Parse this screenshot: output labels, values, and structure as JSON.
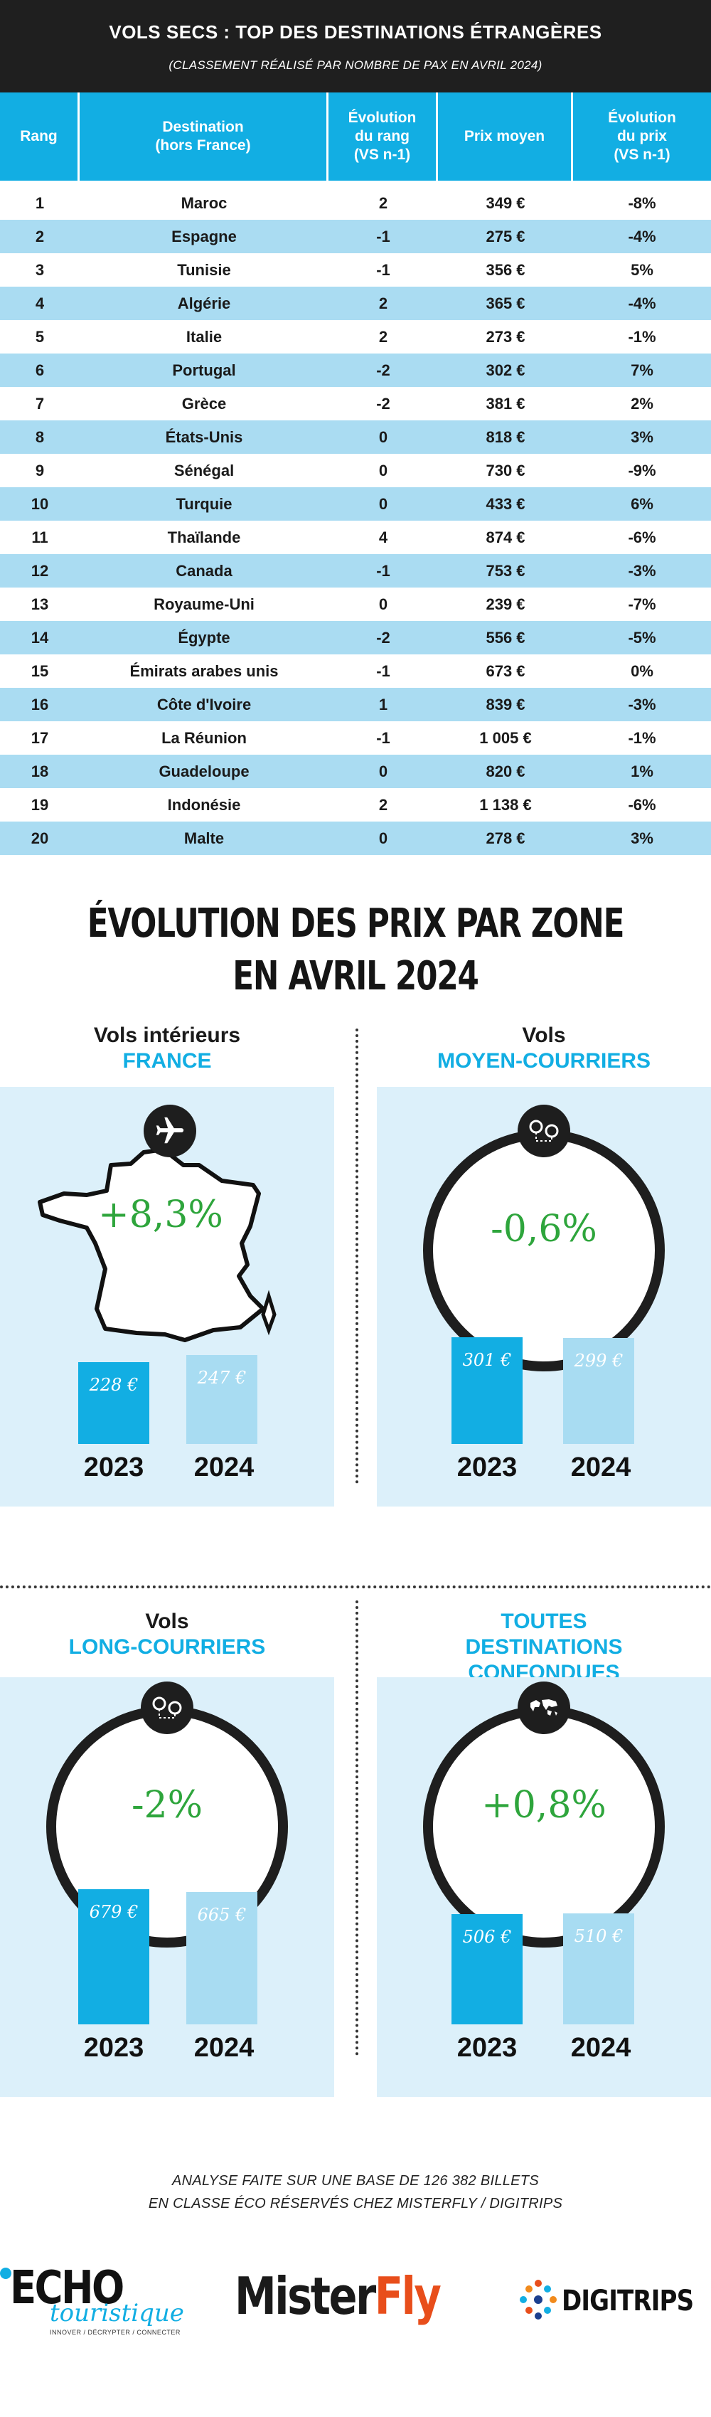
{
  "header": {
    "title": "VOLS SECS : TOP DES DESTINATIONS ÉTRANGÈRES",
    "subtitle": "(CLASSEMENT RÉALISÉ PAR NOMBRE DE PAX EN AVRIL 2024)"
  },
  "table": {
    "headers": [
      "Rang",
      "Destination\n(hors France)",
      "Évolution\ndu rang\n(VS n-1)",
      "Prix moyen",
      "Évolution\ndu prix\n(VS n-1)"
    ],
    "rows": [
      [
        "1",
        "Maroc",
        "2",
        "349 €",
        "-8%"
      ],
      [
        "2",
        "Espagne",
        "-1",
        "275 €",
        "-4%"
      ],
      [
        "3",
        "Tunisie",
        "-1",
        "356 €",
        "5%"
      ],
      [
        "4",
        "Algérie",
        "2",
        "365 €",
        "-4%"
      ],
      [
        "5",
        "Italie",
        "2",
        "273 €",
        "-1%"
      ],
      [
        "6",
        "Portugal",
        "-2",
        "302 €",
        "7%"
      ],
      [
        "7",
        "Grèce",
        "-2",
        "381 €",
        "2%"
      ],
      [
        "8",
        "États-Unis",
        "0",
        "818 €",
        "3%"
      ],
      [
        "9",
        "Sénégal",
        "0",
        "730 €",
        "-9%"
      ],
      [
        "10",
        "Turquie",
        "0",
        "433 €",
        "6%"
      ],
      [
        "11",
        "Thaïlande",
        "4",
        "874 €",
        "-6%"
      ],
      [
        "12",
        "Canada",
        "-1",
        "753 €",
        "-3%"
      ],
      [
        "13",
        "Royaume-Uni",
        "0",
        "239 €",
        "-7%"
      ],
      [
        "14",
        "Égypte",
        "-2",
        "556 €",
        "-5%"
      ],
      [
        "15",
        "Émirats arabes unis",
        "-1",
        "673 €",
        "0%"
      ],
      [
        "16",
        "Côte d'Ivoire",
        "1",
        "839 €",
        "-3%"
      ],
      [
        "17",
        "La Réunion",
        "-1",
        "1 005 €",
        "-1%"
      ],
      [
        "18",
        "Guadeloupe",
        "0",
        "820 €",
        "1%"
      ],
      [
        "19",
        "Indonésie",
        "2",
        "1 138 €",
        "-6%"
      ],
      [
        "20",
        "Malte",
        "0",
        "278 €",
        "3%"
      ]
    ]
  },
  "evolution": {
    "title_line1": "ÉVOLUTION DES PRIX PAR ZONE",
    "title_line2": "EN AVRIL 2024"
  },
  "chart_data": [
    {
      "type": "bar",
      "label_top": "Vols intérieurs",
      "label_accent": "FRANCE",
      "icon": "airplane-icon",
      "change": "+8,3%",
      "categories": [
        "2023",
        "2024"
      ],
      "values": [
        228,
        247
      ],
      "value_labels": [
        "228 €",
        "247 €"
      ]
    },
    {
      "type": "bar",
      "label_top": "Vols",
      "label_accent": "MOYEN-COURRIERS",
      "icon": "route-pins-icon",
      "change": "-0,6%",
      "categories": [
        "2023",
        "2024"
      ],
      "values": [
        301,
        299
      ],
      "value_labels": [
        "301 €",
        "299 €"
      ]
    },
    {
      "type": "bar",
      "label_top": "Vols",
      "label_accent": "LONG-COURRIERS",
      "icon": "route-pins-icon",
      "change": "-2%",
      "categories": [
        "2023",
        "2024"
      ],
      "values": [
        679,
        665
      ],
      "value_labels": [
        "679 €",
        "665 €"
      ]
    },
    {
      "type": "bar",
      "label_top": "",
      "label_accent": "TOUTES DESTINATIONS CONFONDUES",
      "icon": "world-map-icon",
      "change": "+0,8%",
      "categories": [
        "2023",
        "2024"
      ],
      "values": [
        506,
        510
      ],
      "value_labels": [
        "506 €",
        "510 €"
      ]
    }
  ],
  "colors": {
    "accent": "#12aee3",
    "bar_2023": "#12aee3",
    "bar_2024": "#a8dcf2",
    "panel": "#dcf0fa",
    "positive": "#2ea53c",
    "header_bg": "#1f1f1f"
  },
  "footer": {
    "note_line1": "ANALYSE FAITE SUR UNE BASE DE 126 382 BILLETS",
    "note_line2": "EN CLASSE ÉCO RÉSERVÉS CHEZ MISTERFLY / DIGITRIPS",
    "logos": {
      "echo_main": "ECHO",
      "echo_script": "touristique",
      "echo_tagline": "INNOVER / DÉCRYPTER / CONNECTER",
      "misterfly": "MisterFly",
      "digitrips": "DIGITRIPS"
    }
  }
}
